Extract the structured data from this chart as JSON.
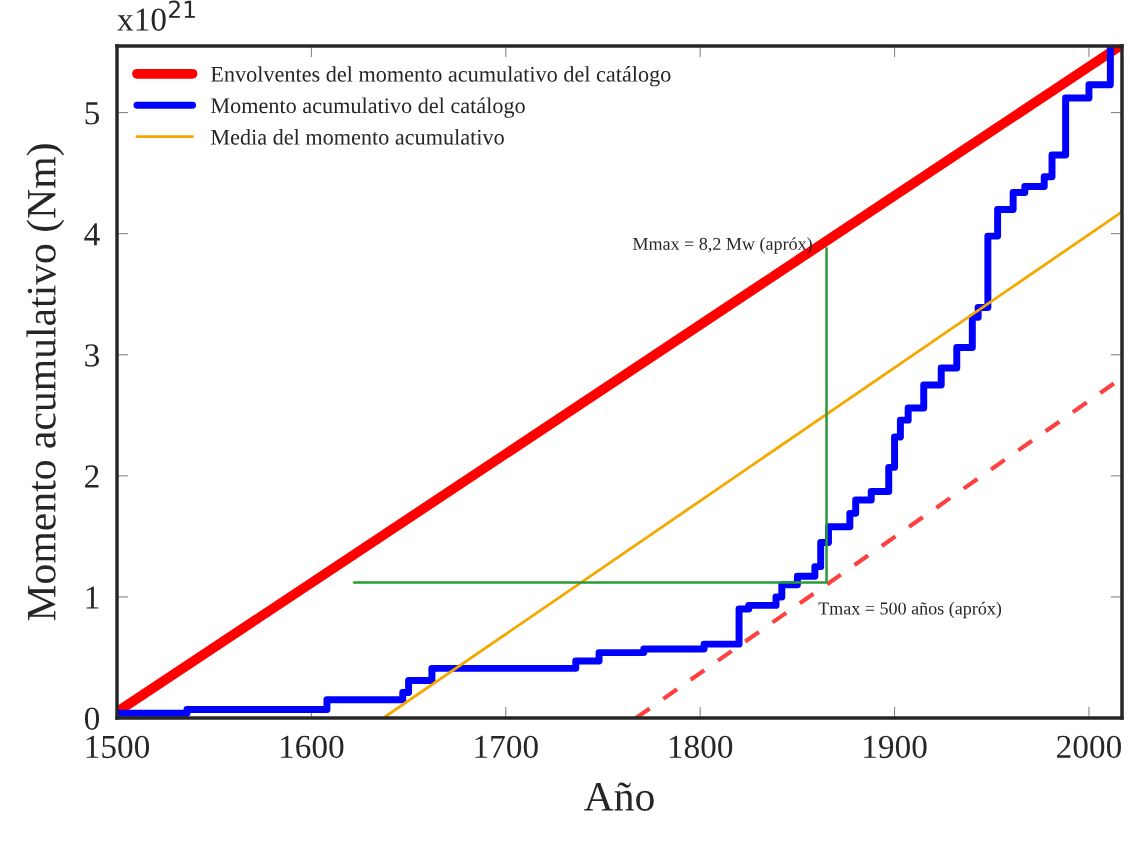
{
  "chart_data": {
    "type": "line",
    "xlabel": "Año",
    "ylabel": "Momento acumulativo (Nm)",
    "xlim": [
      1500,
      2017
    ],
    "xticks": [
      1500,
      1600,
      1700,
      1800,
      1900,
      2000
    ],
    "ylim": [
      0,
      5.55
    ],
    "yticks": [
      0,
      1,
      2,
      3,
      4,
      5
    ],
    "grid": false,
    "legend": "top left",
    "annotations": [
      "x10$^{21}$",
      {
        "text": "Mmax = 8,2 Mw (apróx)",
        "x": 1865,
        "y": 3.88
      },
      {
        "text": "Tmax = 500 años (apróx)",
        "x": 1865,
        "y": 1.12
      }
    ],
    "series": [
      {
        "name": "Envolventes del momento acumulativo del catálogo",
        "color": "#ff0000",
        "line_style": "solid",
        "x": [
          1500,
          2016
        ],
        "values": [
          0.05,
          5.55
        ]
      },
      {
        "color": "#ff4040",
        "line_style": "dashed",
        "x": [
          1767,
          2017
        ],
        "values": [
          0,
          2.81
        ]
      },
      {
        "name": "Momento acumulativo del catálogo",
        "color": "#0000ff",
        "type": "step",
        "x": [
          1500,
          1536,
          1608,
          1647,
          1650,
          1662,
          1736,
          1748,
          1771,
          1802,
          1820,
          1825,
          1839,
          1842,
          1850,
          1859,
          1862,
          1866,
          1877,
          1880,
          1888,
          1897,
          1900,
          1903,
          1907,
          1915,
          1924,
          1932,
          1940,
          1943,
          1948,
          1953,
          1961,
          1967,
          1977,
          1981,
          1988,
          2000,
          2011
        ],
        "values": [
          0.04,
          0.07,
          0.15,
          0.21,
          0.31,
          0.41,
          0.47,
          0.54,
          0.57,
          0.61,
          0.9,
          0.93,
          1.0,
          1.1,
          1.17,
          1.25,
          1.45,
          1.58,
          1.69,
          1.8,
          1.87,
          2.07,
          2.32,
          2.46,
          2.56,
          2.75,
          2.89,
          3.06,
          3.31,
          3.39,
          3.98,
          4.2,
          4.34,
          4.39,
          4.47,
          4.65,
          5.12,
          5.23,
          5.55
        ]
      },
      {
        "name": "Media del momento acumulativo",
        "color": "#f5a800",
        "x": [
          1637,
          2017
        ],
        "values": [
          0,
          4.18
        ]
      },
      {
        "color": "#2a9a3a",
        "x": [
          1622,
          1865,
          1865
        ],
        "values": [
          1.12,
          1.12,
          3.88
        ]
      }
    ]
  }
}
